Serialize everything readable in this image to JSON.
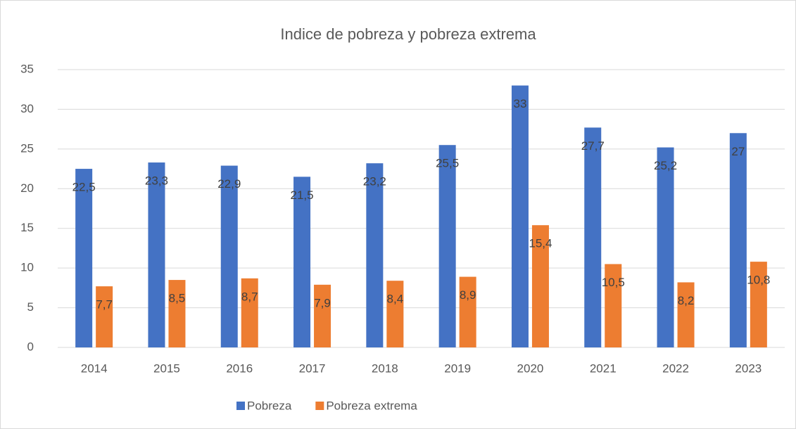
{
  "chart_data": {
    "type": "bar",
    "title": "Indice de pobreza y pobreza extrema",
    "categories": [
      "2014",
      "2015",
      "2016",
      "2017",
      "2018",
      "2019",
      "2020",
      "2021",
      "2022",
      "2023"
    ],
    "series": [
      {
        "name": "Pobreza",
        "color": "#4472c4",
        "values": [
          22.5,
          23.3,
          22.9,
          21.5,
          23.2,
          25.5,
          33,
          27.7,
          25.2,
          27
        ],
        "value_labels": [
          "22,5",
          "23,3",
          "22,9",
          "21,5",
          "23,2",
          "25,5",
          "33",
          "27,7",
          "25,2",
          "27"
        ]
      },
      {
        "name": "Pobreza extrema",
        "color": "#ed7d31",
        "values": [
          7.7,
          8.5,
          8.7,
          7.9,
          8.4,
          8.9,
          15.4,
          10.5,
          8.2,
          10.8
        ],
        "value_labels": [
          "7,7",
          "8,5",
          "8,7",
          "7,9",
          "8,4",
          "8,9",
          "15,4",
          "10,5",
          "8,2",
          "10,8"
        ]
      }
    ],
    "ylim": [
      0,
      35
    ],
    "yticks": [
      0,
      5,
      10,
      15,
      20,
      25,
      30,
      35
    ],
    "grid": true,
    "legend": "bottom"
  }
}
